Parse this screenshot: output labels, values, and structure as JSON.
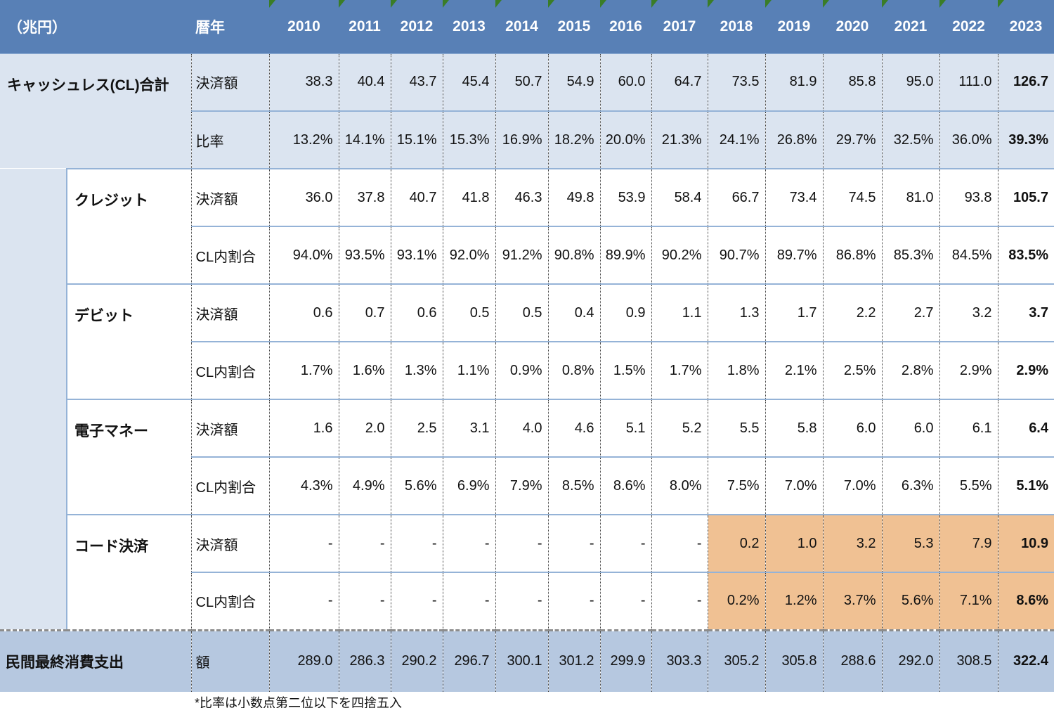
{
  "header": {
    "unit_label": "（兆円）",
    "year_label": "暦年",
    "years": [
      "2010",
      "2011",
      "2012",
      "2013",
      "2014",
      "2015",
      "2016",
      "2017",
      "2018",
      "2019",
      "2020",
      "2021",
      "2022",
      "2023"
    ]
  },
  "sections": [
    {
      "id": "cl-total",
      "label": "キャッシュレス(CL)合計",
      "level": "total",
      "rows": [
        {
          "metric": "決済額",
          "values": [
            "38.3",
            "40.4",
            "43.7",
            "45.4",
            "50.7",
            "54.9",
            "60.0",
            "64.7",
            "73.5",
            "81.9",
            "85.8",
            "95.0",
            "111.0",
            "126.7"
          ]
        },
        {
          "metric": "比率",
          "values": [
            "13.2%",
            "14.1%",
            "15.1%",
            "15.3%",
            "16.9%",
            "18.2%",
            "20.0%",
            "21.3%",
            "24.1%",
            "26.8%",
            "29.7%",
            "32.5%",
            "36.0%",
            "39.3%"
          ]
        }
      ]
    },
    {
      "id": "credit",
      "label": "クレジット",
      "level": "sub",
      "rows": [
        {
          "metric": "決済額",
          "values": [
            "36.0",
            "37.8",
            "40.7",
            "41.8",
            "46.3",
            "49.8",
            "53.9",
            "58.4",
            "66.7",
            "73.4",
            "74.5",
            "81.0",
            "93.8",
            "105.7"
          ]
        },
        {
          "metric": "CL内割合",
          "values": [
            "94.0%",
            "93.5%",
            "93.1%",
            "92.0%",
            "91.2%",
            "90.8%",
            "89.9%",
            "90.2%",
            "90.7%",
            "89.7%",
            "86.8%",
            "85.3%",
            "84.5%",
            "83.5%"
          ]
        }
      ]
    },
    {
      "id": "debit",
      "label": "デビット",
      "level": "sub",
      "rows": [
        {
          "metric": "決済額",
          "values": [
            "0.6",
            "0.7",
            "0.6",
            "0.5",
            "0.5",
            "0.4",
            "0.9",
            "1.1",
            "1.3",
            "1.7",
            "2.2",
            "2.7",
            "3.2",
            "3.7"
          ]
        },
        {
          "metric": "CL内割合",
          "values": [
            "1.7%",
            "1.6%",
            "1.3%",
            "1.1%",
            "0.9%",
            "0.8%",
            "1.5%",
            "1.7%",
            "1.8%",
            "2.1%",
            "2.5%",
            "2.8%",
            "2.9%",
            "2.9%"
          ]
        }
      ]
    },
    {
      "id": "emoney",
      "label": "電子マネー",
      "level": "sub",
      "rows": [
        {
          "metric": "決済額",
          "values": [
            "1.6",
            "2.0",
            "2.5",
            "3.1",
            "4.0",
            "4.6",
            "5.1",
            "5.2",
            "5.5",
            "5.8",
            "6.0",
            "6.0",
            "6.1",
            "6.4"
          ]
        },
        {
          "metric": "CL内割合",
          "values": [
            "4.3%",
            "4.9%",
            "5.6%",
            "6.9%",
            "7.9%",
            "8.5%",
            "8.6%",
            "8.0%",
            "7.5%",
            "7.0%",
            "7.0%",
            "6.3%",
            "5.5%",
            "5.1%"
          ]
        }
      ]
    },
    {
      "id": "code-payment",
      "label": "コード決済",
      "level": "sub",
      "highlight_from_year": "2018",
      "rows": [
        {
          "metric": "決済額",
          "values": [
            "-",
            "-",
            "-",
            "-",
            "-",
            "-",
            "-",
            "-",
            "0.2",
            "1.0",
            "3.2",
            "5.3",
            "7.9",
            "10.9"
          ]
        },
        {
          "metric": "CL内割合",
          "values": [
            "-",
            "-",
            "-",
            "-",
            "-",
            "-",
            "-",
            "-",
            "0.2%",
            "1.2%",
            "3.7%",
            "5.6%",
            "7.1%",
            "8.6%"
          ]
        }
      ]
    }
  ],
  "footer": {
    "label": "民間最終消費支出",
    "metric": "額",
    "values": [
      "289.0",
      "286.3",
      "290.2",
      "296.7",
      "300.1",
      "301.2",
      "299.9",
      "303.3",
      "305.2",
      "305.8",
      "288.6",
      "292.0",
      "308.5",
      "322.4"
    ]
  },
  "footnote": "*比率は小数点第二位以下を四捨五入",
  "colors": {
    "header_bg": "#5880b6",
    "band_light_blue": "#dbe4f0",
    "band_white": "#ffffff",
    "highlight_orange": "#f0c193",
    "footer_bg": "#b6c8e0",
    "grid_blue": "#95b3d7",
    "flag_green": "#3a7d27"
  }
}
